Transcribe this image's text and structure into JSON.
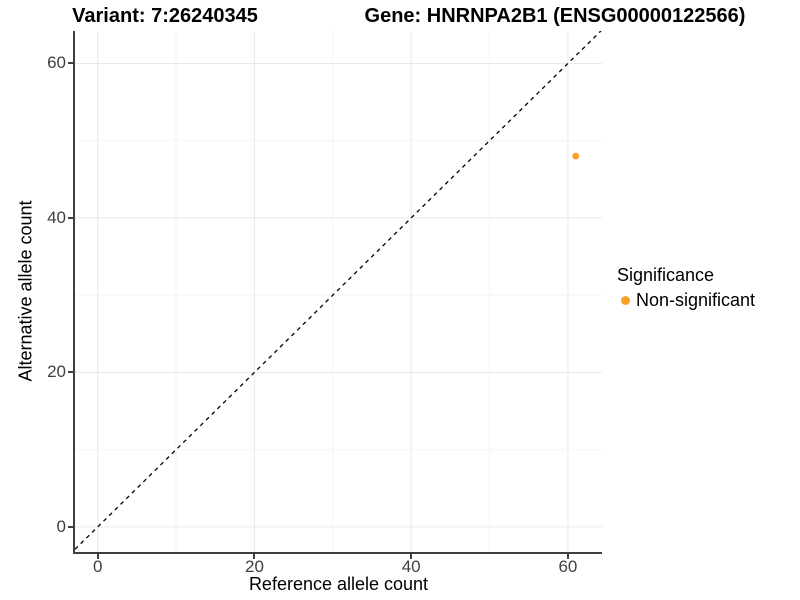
{
  "titles": {
    "variant": "Variant: 7:26240345",
    "gene": "Gene: HNRNPA2B1 (ENSG00000122566)"
  },
  "axes": {
    "x_label": "Reference allele count",
    "y_label": "Alternative allele count"
  },
  "legend": {
    "title": "Significance",
    "items": [
      {
        "label": "Non-significant",
        "color": "#F9A12B"
      }
    ]
  },
  "colors": {
    "point_orange": "#F9A12B",
    "axis_line": "#3F3F3F",
    "tick_text": "#404040",
    "grid_major": "#E9E9E9",
    "grid_minor": "#F4F4F4",
    "reference_line": "#000000"
  },
  "chart_data": {
    "type": "scatter",
    "title": "Variant: 7:26240345 | Gene: HNRNPA2B1 (ENSG00000122566)",
    "xlabel": "Reference allele count",
    "ylabel": "Alternative allele count",
    "xlim": [
      -2.9,
      64.35
    ],
    "ylim": [
      -3.25,
      64.2
    ],
    "x_ticks": [
      0,
      20,
      40,
      60
    ],
    "y_ticks": [
      0,
      20,
      40,
      60
    ],
    "x_minor_ticks": [
      10,
      30,
      50
    ],
    "y_minor_ticks": [
      10,
      30,
      50
    ],
    "grid": true,
    "legend_position": "right",
    "reference_line": {
      "kind": "identity",
      "slope": 1,
      "intercept": 0,
      "style": "dashed",
      "color": "#000000"
    },
    "series": [
      {
        "name": "Non-significant",
        "color": "#F9A12B",
        "points": [
          {
            "x": 61,
            "y": 48
          }
        ],
        "point_radius": 3.4
      }
    ]
  }
}
